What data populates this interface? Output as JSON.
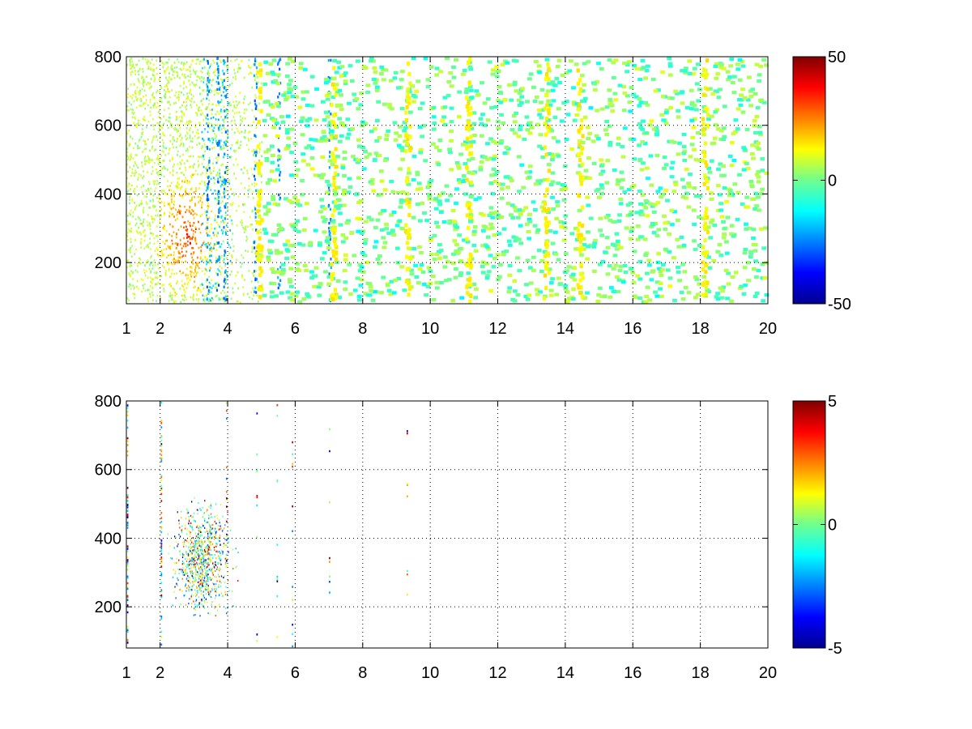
{
  "chart_data": [
    {
      "type": "heatmap",
      "title": "",
      "xlabel": "",
      "ylabel": "",
      "x_scale": "linear",
      "xlim": [
        1,
        20
      ],
      "ylim": [
        80,
        800
      ],
      "x_ticks": [
        1,
        2,
        4,
        6,
        8,
        10,
        12,
        14,
        16,
        18,
        20
      ],
      "y_ticks": [
        200,
        400,
        600,
        800
      ],
      "grid": true,
      "colormap": "jet",
      "colorbar": {
        "clim": [
          -50,
          50
        ],
        "ticks": [
          -50,
          0,
          50
        ]
      },
      "description_values": {
        "hotspot": {
          "x": 2.8,
          "y": 280,
          "value": 35
        },
        "blue_streaks_x": [
          3.4,
          3.7,
          3.9,
          4.8,
          5.5,
          7.0
        ],
        "yellow_columns_x": [
          4.9,
          7.1,
          9.3,
          11.1,
          13.4,
          14.4,
          18.1
        ]
      }
    },
    {
      "type": "heatmap",
      "title": "",
      "xlabel": "",
      "ylabel": "",
      "x_scale": "linear",
      "xlim": [
        1,
        20
      ],
      "ylim": [
        80,
        800
      ],
      "x_ticks": [
        1,
        2,
        4,
        6,
        8,
        10,
        12,
        14,
        16,
        18,
        20
      ],
      "y_ticks": [
        200,
        400,
        600,
        800
      ],
      "grid": true,
      "colormap": "jet",
      "colorbar": {
        "clim": [
          -5,
          5
        ],
        "ticks": [
          -5,
          0,
          5
        ]
      },
      "description_values": {
        "cluster": {
          "x": 3.2,
          "y": 330
        }
      }
    }
  ]
}
